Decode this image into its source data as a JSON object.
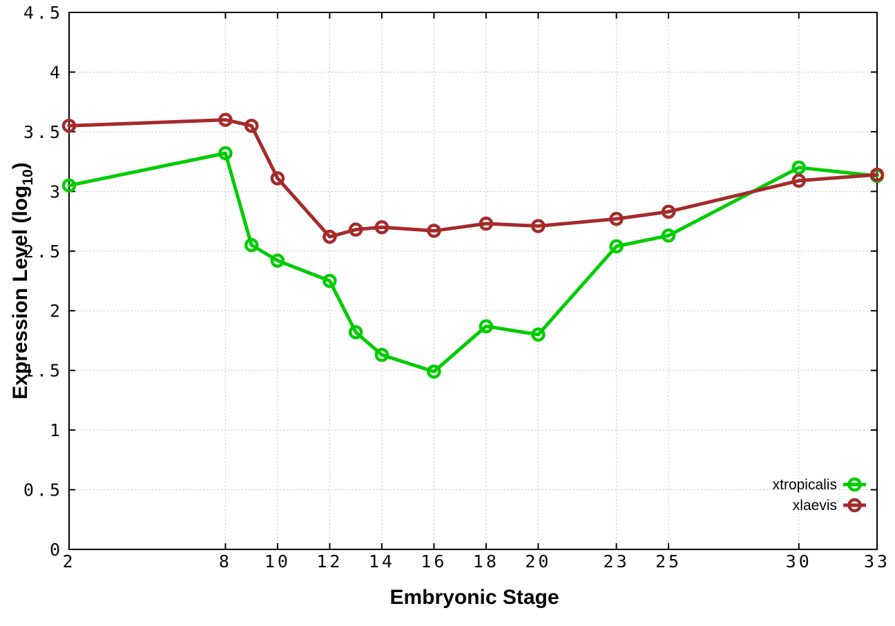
{
  "chart_data": {
    "type": "line",
    "title": "",
    "xlabel": "Embryonic Stage",
    "ylabel": "Expression Level (log10)",
    "ylabel_main": "Expression Level (log",
    "ylabel_sub": "10",
    "ylabel_end": ")",
    "xlim": [
      2,
      33
    ],
    "ylim": [
      0,
      4.5
    ],
    "x_ticks": [
      2,
      8,
      10,
      12,
      14,
      16,
      18,
      20,
      23,
      25,
      30,
      33
    ],
    "y_ticks": [
      0,
      0.5,
      1,
      1.5,
      2,
      2.5,
      3,
      3.5,
      4,
      4.5
    ],
    "grid": true,
    "grid_style": "dotted",
    "legend_position": "bottom-right-inside",
    "marker": "open-circle",
    "background_color": "#ffffff",
    "axis_color": "#000000",
    "grid_color": "#b4b4b4",
    "x": [
      2,
      8,
      9,
      10,
      12,
      13,
      14,
      16,
      18,
      20,
      23,
      25,
      30,
      33
    ],
    "series": [
      {
        "name": "xtropicalis",
        "color": "#00cc00",
        "values": [
          3.05,
          3.32,
          2.55,
          2.42,
          2.25,
          1.82,
          1.63,
          1.49,
          1.87,
          1.8,
          2.54,
          2.63,
          3.2,
          3.13
        ]
      },
      {
        "name": "xlaevis",
        "color": "#a52a2a",
        "values": [
          3.55,
          3.6,
          3.55,
          3.11,
          2.62,
          2.68,
          2.7,
          2.67,
          2.73,
          2.71,
          2.77,
          2.83,
          3.09,
          3.14
        ]
      }
    ]
  }
}
